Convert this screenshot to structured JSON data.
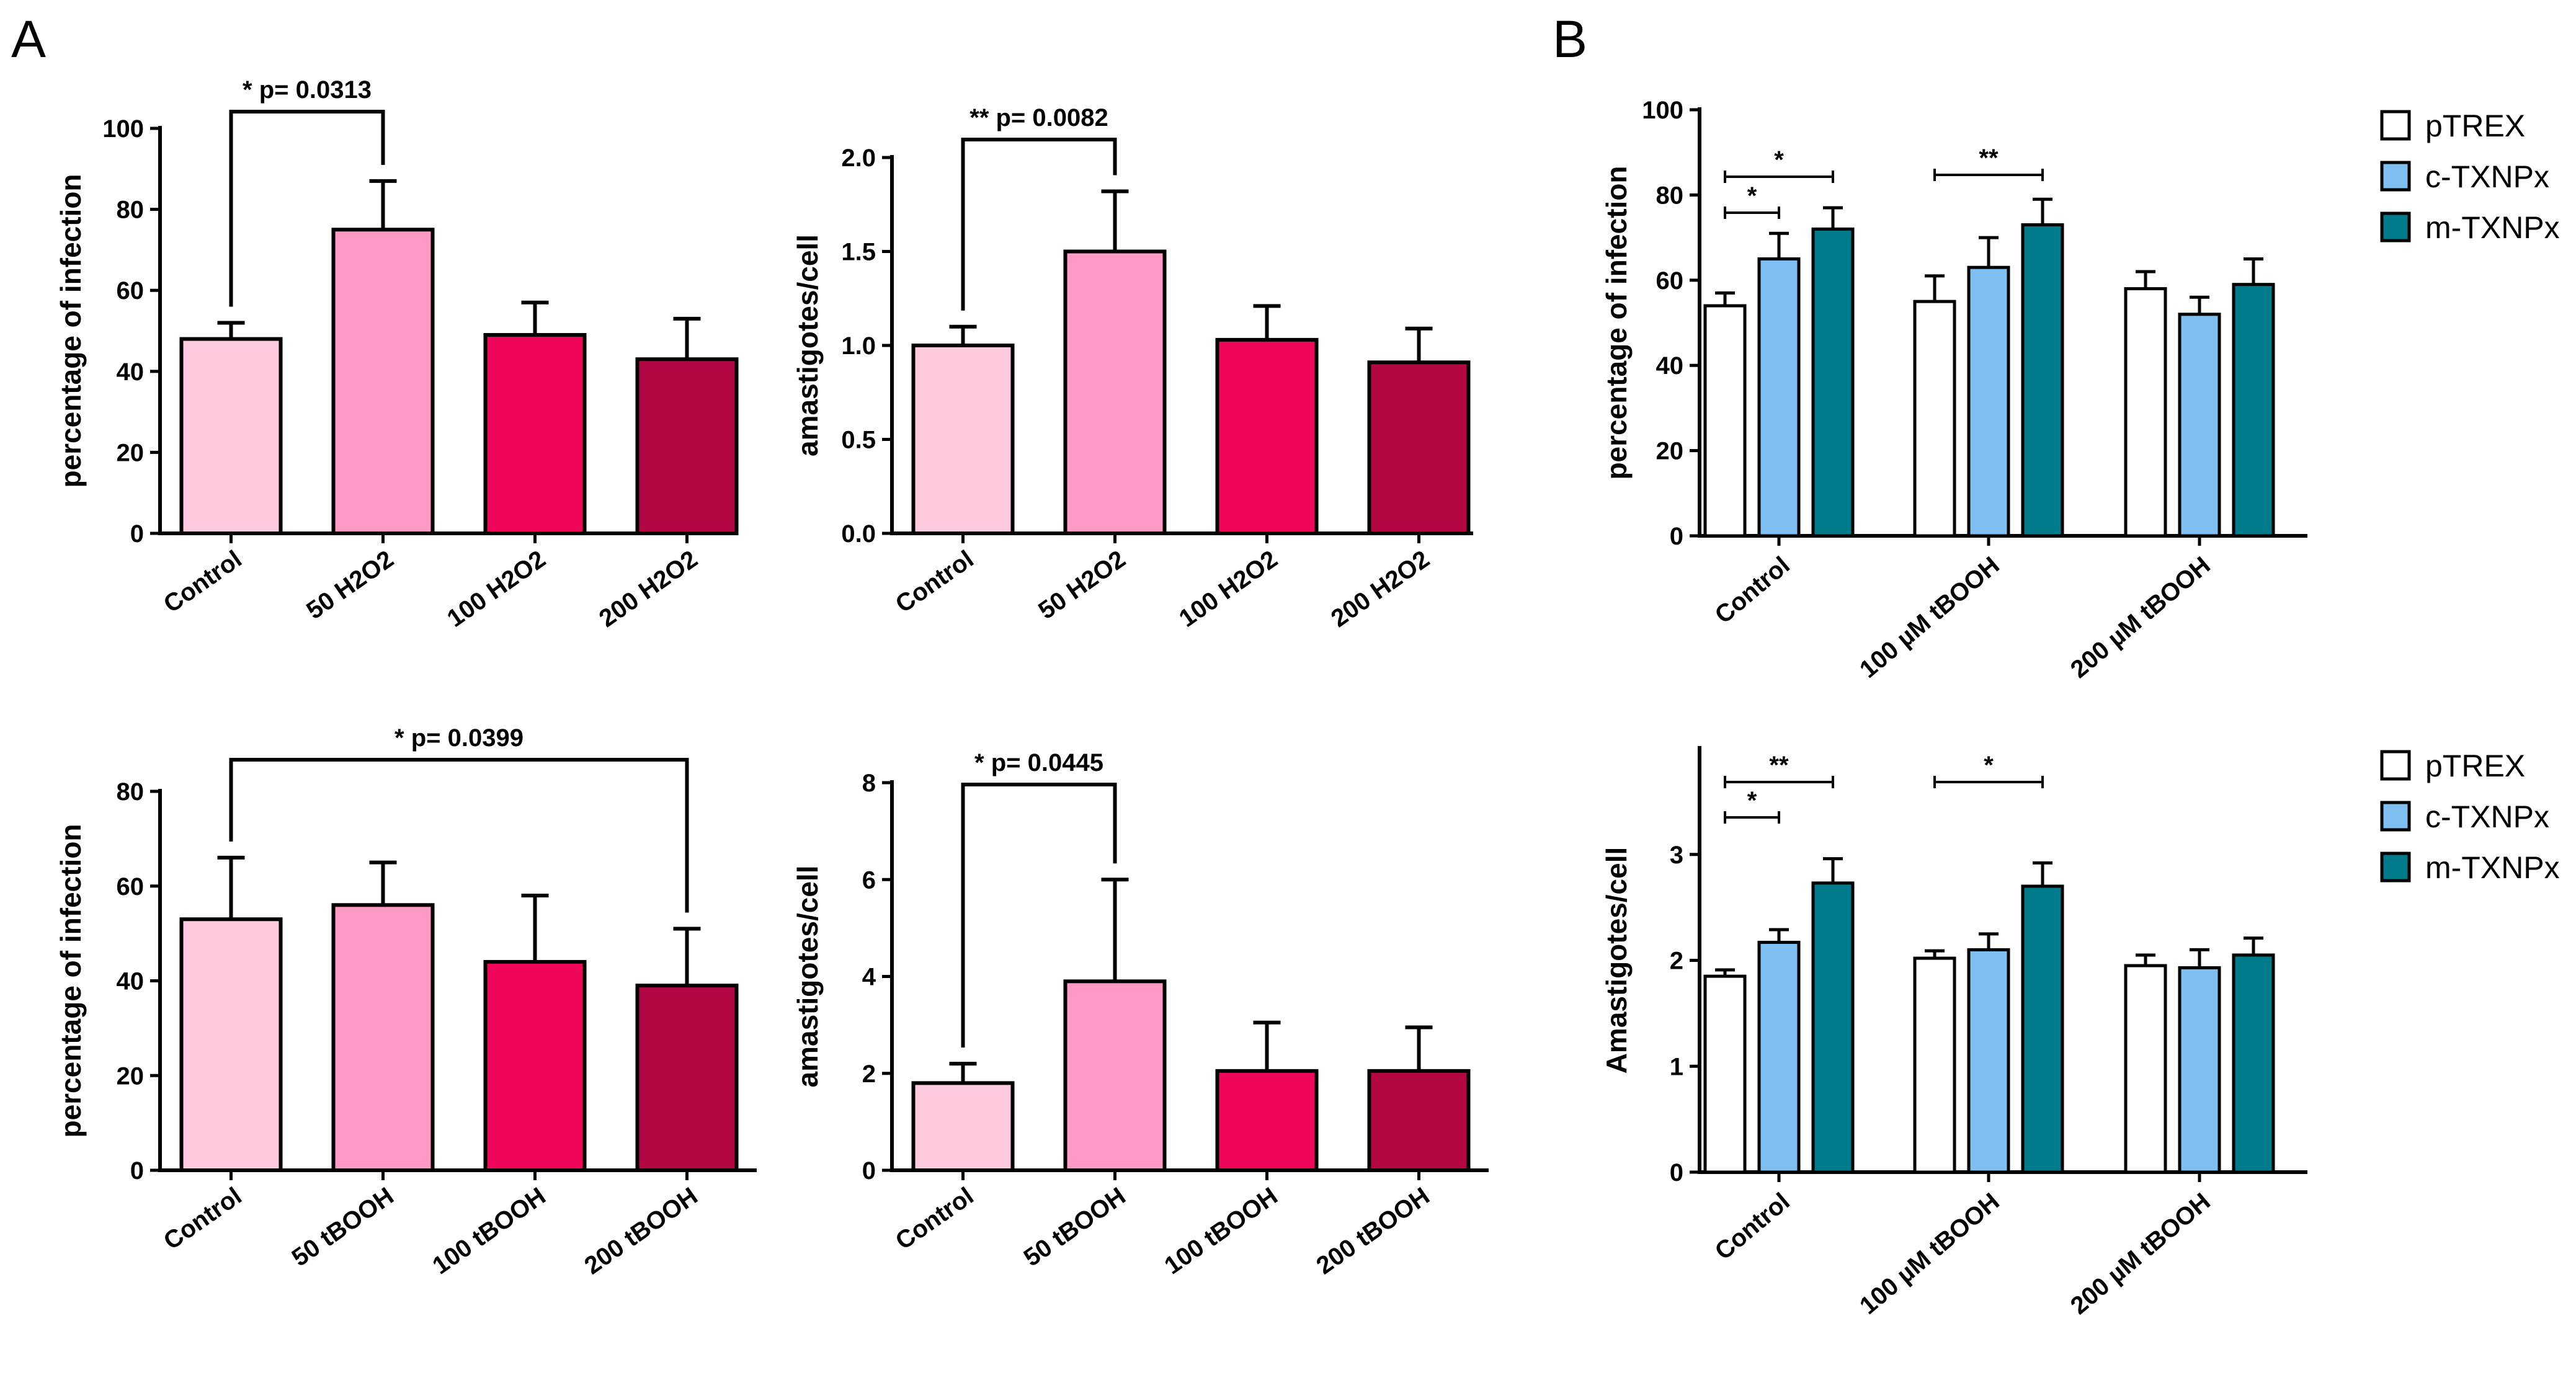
{
  "panels": {
    "A": "A",
    "B": "B"
  },
  "chart_data": [
    {
      "type": "bar",
      "categories": [
        "Control",
        "50 H2O2",
        "100 H2O2",
        "200 H2O2"
      ],
      "series": [
        {
          "values": [
            48,
            75,
            49,
            43
          ],
          "errors": [
            4,
            12,
            8,
            10
          ]
        }
      ],
      "ylabel": "percentage of infection",
      "ylim": [
        0,
        100
      ],
      "yticks": [
        0,
        20,
        40,
        60,
        80,
        100
      ],
      "colors": [
        "#ffc9df",
        "#ff99c5",
        "#f0065a",
        "#b30745"
      ],
      "significance": [
        {
          "from": 0,
          "to": 1,
          "label": "* p= 0.0313"
        }
      ]
    },
    {
      "type": "bar",
      "categories": [
        "Control",
        "50 H2O2",
        "100 H2O2",
        "200 H2O2"
      ],
      "series": [
        {
          "values": [
            1.0,
            1.5,
            1.03,
            0.91
          ],
          "errors": [
            0.1,
            0.32,
            0.18,
            0.18
          ]
        }
      ],
      "ylabel": "amastigotes/cell",
      "ylim": [
        0,
        2.0
      ],
      "yticks": [
        "0.0",
        "0.5",
        "1.0",
        "1.5",
        "2.0"
      ],
      "colors": [
        "#ffc9df",
        "#ff99c5",
        "#f0065a",
        "#b30745"
      ],
      "significance": [
        {
          "from": 0,
          "to": 1,
          "label": "** p= 0.0082"
        }
      ]
    },
    {
      "type": "bar",
      "categories": [
        "Control",
        "50 tBOOH",
        "100 tBOOH",
        "200 tBOOH"
      ],
      "series": [
        {
          "values": [
            53,
            56,
            44,
            39
          ],
          "errors": [
            13,
            9,
            14,
            12
          ]
        }
      ],
      "ylabel": "percentage of infection",
      "ylim": [
        0,
        80
      ],
      "yticks": [
        0,
        20,
        40,
        60,
        80
      ],
      "colors": [
        "#ffc9df",
        "#ff99c5",
        "#f0065a",
        "#b30745"
      ],
      "significance": [
        {
          "from": 0,
          "to": 3,
          "label": "* p= 0.0399"
        }
      ]
    },
    {
      "type": "bar",
      "categories": [
        "Control",
        "50 tBOOH",
        "100 tBOOH",
        "200 tBOOH"
      ],
      "series": [
        {
          "values": [
            1.8,
            3.9,
            2.05,
            2.05
          ],
          "errors": [
            0.4,
            2.1,
            1.0,
            0.9
          ]
        }
      ],
      "ylabel": "amastigotes/cell",
      "ylim": [
        0,
        8
      ],
      "yticks": [
        0,
        2,
        4,
        6,
        8
      ],
      "colors": [
        "#ffc9df",
        "#ff99c5",
        "#f0065a",
        "#b30745"
      ],
      "significance": [
        {
          "from": 0,
          "to": 1,
          "label": "* p= 0.0445"
        }
      ]
    },
    {
      "type": "bar",
      "categories": [
        "Control",
        "100 µM tBOOH",
        "200 µM tBOOH"
      ],
      "series": [
        {
          "name": "pTREX",
          "color": "#ffffff",
          "values": [
            54,
            55,
            58
          ],
          "errors": [
            3,
            6,
            4
          ]
        },
        {
          "name": "c-TXNPx",
          "color": "#7fbff1",
          "values": [
            65,
            63,
            52
          ],
          "errors": [
            6,
            7,
            4
          ]
        },
        {
          "name": "m-TXNPx",
          "color": "#007b8c",
          "values": [
            72,
            73,
            59
          ],
          "errors": [
            5,
            6,
            6
          ]
        }
      ],
      "ylabel": "percentage of infection",
      "ylim": [
        0,
        100
      ],
      "yticks": [
        0,
        20,
        40,
        60,
        80,
        100
      ],
      "legend": "right",
      "significance": [
        {
          "group": 0,
          "from": 0,
          "to": 1,
          "label": "*"
        },
        {
          "group": 0,
          "from": 0,
          "to": 2,
          "label": "*"
        },
        {
          "group": 1,
          "from": 0,
          "to": 2,
          "label": "**"
        }
      ]
    },
    {
      "type": "bar",
      "categories": [
        "Control",
        "100 µM tBOOH",
        "200 µM tBOOH"
      ],
      "series": [
        {
          "name": "pTREX",
          "color": "#ffffff",
          "values": [
            1.85,
            2.02,
            1.95
          ],
          "errors": [
            0.06,
            0.07,
            0.1
          ]
        },
        {
          "name": "c-TXNPx",
          "color": "#7fbff1",
          "values": [
            2.17,
            2.1,
            1.93
          ],
          "errors": [
            0.12,
            0.15,
            0.17
          ]
        },
        {
          "name": "m-TXNPx",
          "color": "#007b8c",
          "values": [
            2.73,
            2.7,
            2.05
          ],
          "errors": [
            0.23,
            0.22,
            0.16
          ]
        }
      ],
      "ylabel": "Amastigotes/cell",
      "ylim": [
        0,
        4
      ],
      "yticks": [
        0,
        1,
        2,
        3
      ],
      "legend": "right",
      "significance": [
        {
          "group": 0,
          "from": 0,
          "to": 1,
          "label": "*"
        },
        {
          "group": 0,
          "from": 0,
          "to": 2,
          "label": "**"
        },
        {
          "group": 1,
          "from": 0,
          "to": 2,
          "label": "*"
        }
      ]
    }
  ]
}
